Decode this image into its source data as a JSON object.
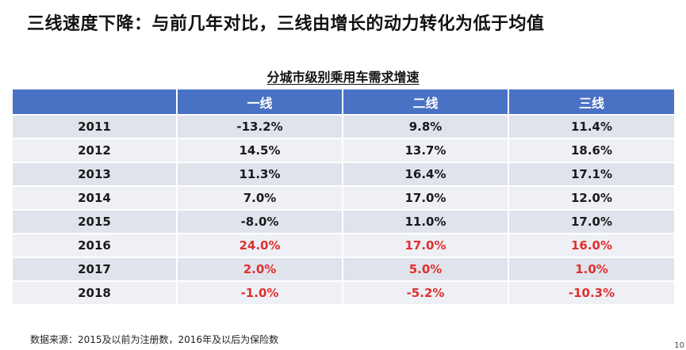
{
  "slide": {
    "title": "三线速度下降：与前几年对比，三线由增长的动力转化为低于均值",
    "table_title": "分城市级别乘用车需求增速",
    "source_note": "数据来源：2015及以前为注册数，2016年及以后为保险数",
    "page_number": "10"
  },
  "colors": {
    "header_bg": "#4a72c4",
    "row_odd_bg": "#dfe3ec",
    "row_even_bg": "#eef0f5",
    "highlight_text": "#e0302c"
  },
  "table": {
    "headers": [
      "",
      "一线",
      "二线",
      "三线"
    ],
    "rows": [
      {
        "year": "2011",
        "tier1": "-13.2%",
        "tier2": "9.8%",
        "tier3": "11.4%"
      },
      {
        "year": "2012",
        "tier1": "14.5%",
        "tier2": "13.7%",
        "tier3": "18.6%"
      },
      {
        "year": "2013",
        "tier1": "11.3%",
        "tier2": "16.4%",
        "tier3": "17.1%"
      },
      {
        "year": "2014",
        "tier1": "7.0%",
        "tier2": "17.0%",
        "tier3": "12.0%"
      },
      {
        "year": "2015",
        "tier1": "-8.0%",
        "tier2": "11.0%",
        "tier3": "17.0%"
      },
      {
        "year": "2016",
        "tier1": "24.0%",
        "tier2": "17.0%",
        "tier3": "16.0%"
      },
      {
        "year": "2017",
        "tier1": "2.0%",
        "tier2": "5.0%",
        "tier3": "1.0%"
      },
      {
        "year": "2018",
        "tier1": "-1.0%",
        "tier2": "-5.2%",
        "tier3": "-10.3%"
      }
    ]
  }
}
